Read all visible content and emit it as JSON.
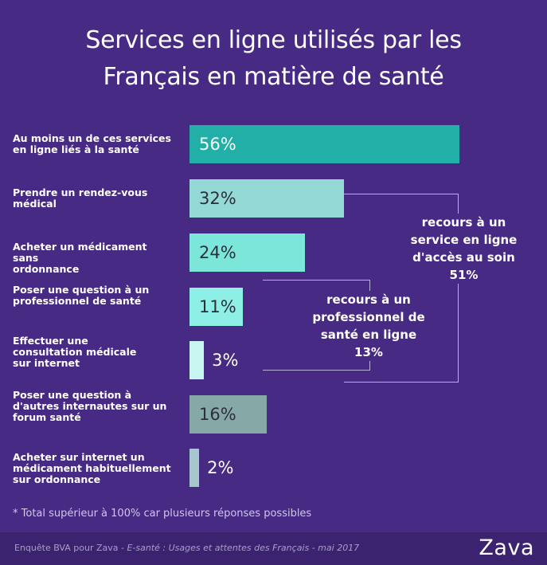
{
  "title_line1": "Services en ligne utilisés par les",
  "title_line2": "Français en matière de santé",
  "chart_data": {
    "type": "bar",
    "orientation": "horizontal",
    "title": "Services en ligne utilisés par les Français en matière de santé",
    "unit": "%",
    "xlim": [
      0,
      56
    ],
    "categories": [
      [
        "Au moins un de ces services",
        "en ligne liés à la santé"
      ],
      [
        "Prendre un rendez-vous",
        "médical"
      ],
      [
        "Acheter un médicament sans",
        "ordonnance"
      ],
      [
        "Poser une question à un",
        "professionnel de santé"
      ],
      [
        "Effectuer une",
        "consultation médicale",
        "sur internet"
      ],
      [
        "Poser une question à",
        "d'autres internautes sur un",
        "forum santé"
      ],
      [
        "Acheter sur internet un",
        "médicament habituellement",
        "sur ordonnance"
      ]
    ],
    "values": [
      56,
      32,
      24,
      11,
      3,
      16,
      2
    ],
    "labels": [
      "56%",
      "32%",
      "24%",
      "11%",
      "3%",
      "16%",
      "2%"
    ],
    "colors": [
      "#21AFA7",
      "#94D9D5",
      "#7DE6DB",
      "#8DEFE6",
      "#C7F5EF",
      "#86A9A7",
      "#A7C7CF"
    ],
    "annotations": [
      {
        "lines": [
          "recours à un",
          "service en ligne",
          "d'accès au soin",
          "51%"
        ],
        "spans": [
          1,
          4
        ]
      },
      {
        "lines": [
          "recours à un",
          "professionnel de",
          "santé en ligne",
          "13%"
        ],
        "spans": [
          3,
          4
        ]
      }
    ]
  },
  "note": "* Total supérieur à 100% car plusieurs réponses possibles",
  "source_prefix": "Enquête BVA pour Zava - ",
  "source_italic": "E-santé : Usages et attentes des Français - mai 2017",
  "logo": "Zava",
  "colors": {
    "background": "#472A84",
    "footer": "#3B2370"
  }
}
